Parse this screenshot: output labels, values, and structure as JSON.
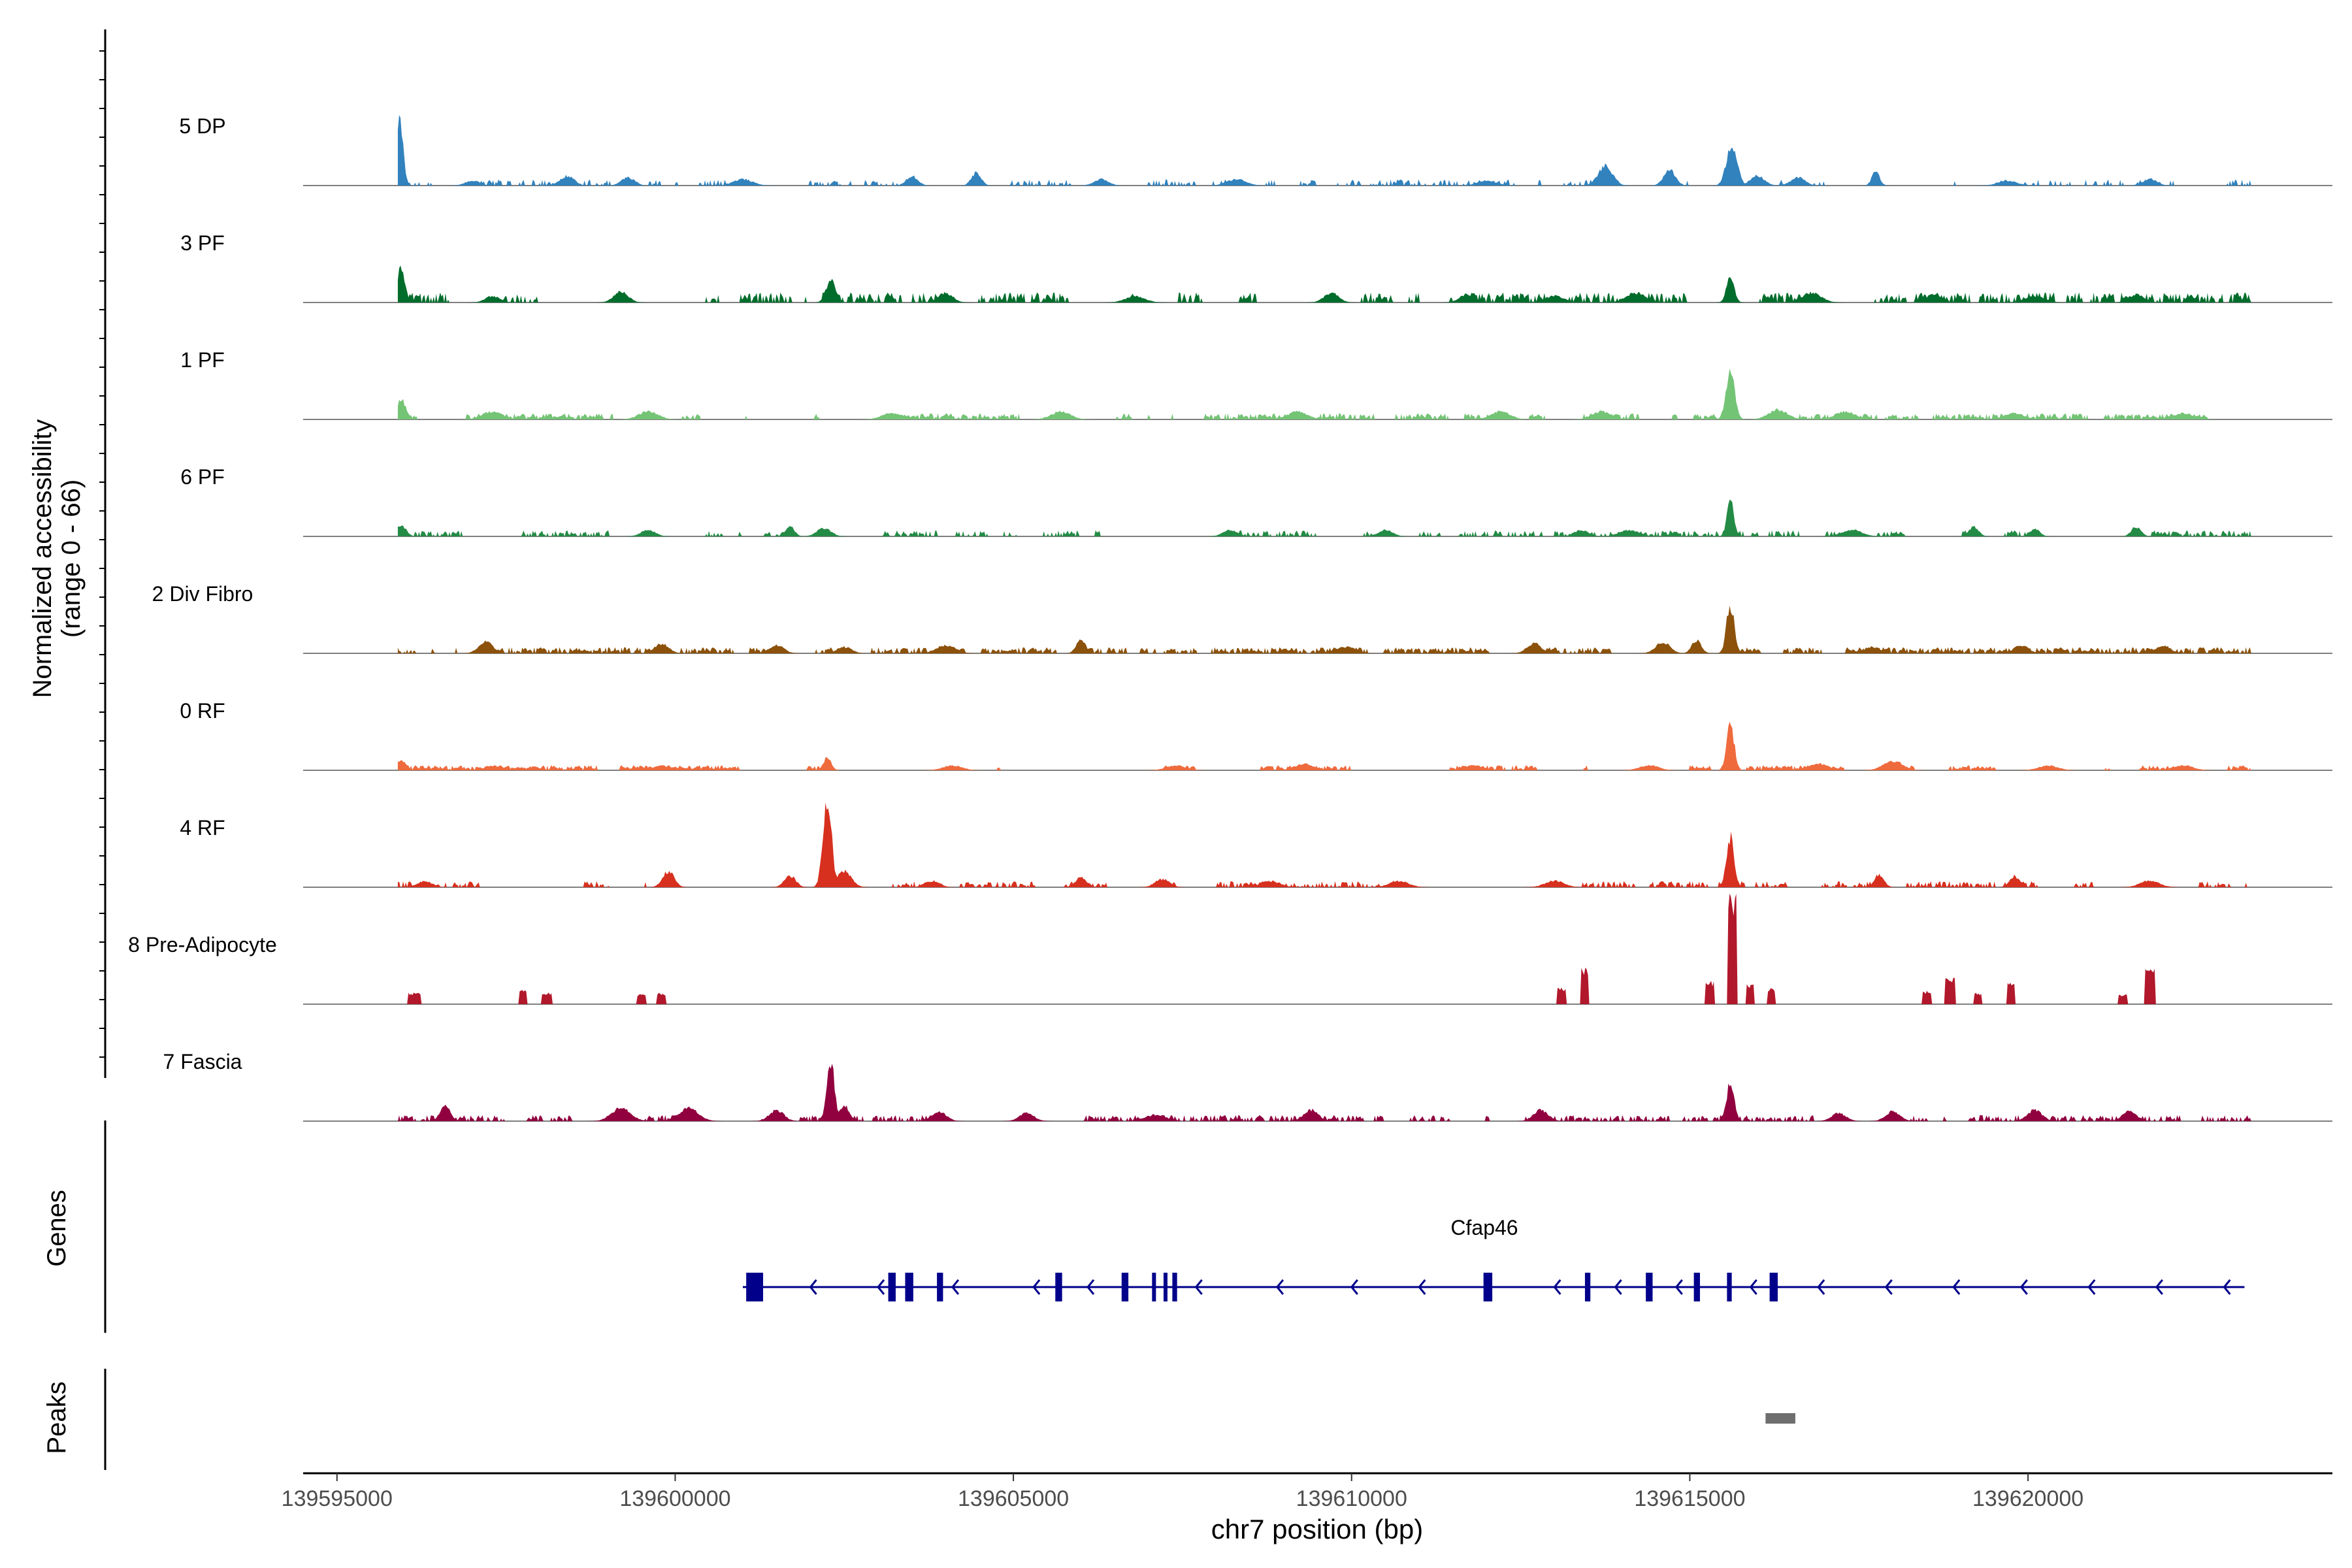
{
  "chart_data": {
    "type": "area",
    "title": "",
    "xlabel": "chr7 position (bp)",
    "ylabel_line1": "Normalized accessibility",
    "ylabel_line2": "(range 0 - 66)",
    "y_range": [
      0,
      66
    ],
    "x_range": [
      139594500,
      139624500
    ],
    "x_ticks": [
      139595000,
      139600000,
      139605000,
      139610000,
      139615000,
      139620000
    ],
    "x_tick_labels": [
      "139595000",
      "139600000",
      "139605000",
      "139610000",
      "139615000",
      "139620000"
    ],
    "genes_label": "Genes",
    "peaks_label": "Peaks",
    "tracks": [
      {
        "name": "5 DP",
        "color": "#3182bd",
        "peaks": [
          [
            139595930,
            40,
            70
          ],
          [
            139615620,
            26,
            110
          ],
          [
            139614700,
            10,
            120
          ],
          [
            139613750,
            12,
            150
          ],
          [
            139603500,
            6,
            120
          ],
          [
            139604450,
            8,
            100
          ],
          [
            139617750,
            9,
            80
          ],
          [
            139598400,
            6,
            150
          ],
          [
            139599300,
            5,
            140
          ],
          [
            139601000,
            4,
            200
          ],
          [
            139606300,
            4,
            150
          ],
          [
            139608300,
            4,
            200
          ],
          [
            139612000,
            3,
            200
          ],
          [
            139616000,
            6,
            150
          ],
          [
            139616600,
            5,
            150
          ],
          [
            139619700,
            3,
            200
          ],
          [
            139621800,
            4,
            150
          ],
          [
            139597000,
            3,
            150
          ]
        ],
        "noise": 3,
        "density": 0.4
      },
      {
        "name": "3 PF",
        "color": "#006d2c",
        "peaks": [
          [
            139595950,
            22,
            80
          ],
          [
            139602300,
            14,
            100
          ],
          [
            139615600,
            16,
            80
          ],
          [
            139599200,
            7,
            150
          ],
          [
            139604000,
            6,
            150
          ],
          [
            139609700,
            6,
            150
          ],
          [
            139611700,
            5,
            150
          ],
          [
            139614200,
            6,
            200
          ],
          [
            139616800,
            6,
            200
          ],
          [
            139618600,
            5,
            150
          ],
          [
            139621600,
            5,
            150
          ],
          [
            139597300,
            4,
            150
          ],
          [
            139606800,
            4,
            200
          ],
          [
            139613000,
            4,
            200
          ],
          [
            139620100,
            4,
            200
          ]
        ],
        "noise": 5,
        "density": 0.75
      },
      {
        "name": "1 PF",
        "color": "#74c476",
        "peaks": [
          [
            139615600,
            30,
            90
          ],
          [
            139595950,
            12,
            100
          ],
          [
            139597300,
            5,
            200
          ],
          [
            139599600,
            5,
            200
          ],
          [
            139603200,
            4,
            200
          ],
          [
            139605700,
            5,
            200
          ],
          [
            139609200,
            5,
            200
          ],
          [
            139612200,
            5,
            200
          ],
          [
            139613700,
            5,
            200
          ],
          [
            139616300,
            6,
            200
          ],
          [
            139617300,
            5,
            200
          ],
          [
            139619800,
            4,
            200
          ],
          [
            139622300,
            4,
            200
          ]
        ],
        "noise": 3,
        "density": 0.85
      },
      {
        "name": "6 PF",
        "color": "#238b45",
        "peaks": [
          [
            139615600,
            24,
            70
          ],
          [
            139595950,
            7,
            100
          ],
          [
            139601700,
            6,
            90
          ],
          [
            139602200,
            5,
            150
          ],
          [
            139614100,
            4,
            200
          ],
          [
            139619200,
            6,
            100
          ],
          [
            139620100,
            5,
            100
          ],
          [
            139621600,
            6,
            100
          ],
          [
            139599600,
            4,
            150
          ],
          [
            139608200,
            4,
            150
          ],
          [
            139610500,
            4,
            150
          ],
          [
            139613400,
            4,
            150
          ],
          [
            139617400,
            4,
            200
          ]
        ],
        "noise": 3,
        "density": 0.6
      },
      {
        "name": "2 Div Fibro",
        "color": "#8c510a",
        "peaks": [
          [
            139615600,
            30,
            80
          ],
          [
            139615100,
            8,
            100
          ],
          [
            139606000,
            8,
            100
          ],
          [
            139597200,
            7,
            150
          ],
          [
            139599800,
            6,
            150
          ],
          [
            139601500,
            5,
            150
          ],
          [
            139602500,
            4,
            150
          ],
          [
            139604000,
            5,
            200
          ],
          [
            139609900,
            4,
            200
          ],
          [
            139612700,
            6,
            150
          ],
          [
            139614600,
            7,
            150
          ],
          [
            139617700,
            4,
            150
          ],
          [
            139619900,
            5,
            150
          ],
          [
            139622000,
            5,
            150
          ]
        ],
        "noise": 3,
        "density": 0.8
      },
      {
        "name": "0 RF",
        "color": "#ef6a3d",
        "peaks": [
          [
            139615600,
            28,
            80
          ],
          [
            139602250,
            8,
            80
          ],
          [
            139618000,
            6,
            200
          ],
          [
            139595950,
            6,
            100
          ],
          [
            139597300,
            3,
            150
          ],
          [
            139599800,
            3,
            150
          ],
          [
            139604100,
            3,
            200
          ],
          [
            139607400,
            3,
            200
          ],
          [
            139609300,
            4,
            200
          ],
          [
            139611800,
            3,
            200
          ],
          [
            139614400,
            3,
            200
          ],
          [
            139616900,
            4,
            200
          ],
          [
            139620300,
            3,
            200
          ],
          [
            139622300,
            3,
            200
          ]
        ],
        "noise": 2.5,
        "density": 0.9
      },
      {
        "name": "4 RF",
        "color": "#d7301f",
        "peaks": [
          [
            139602250,
            54,
            90
          ],
          [
            139602500,
            10,
            150
          ],
          [
            139615600,
            32,
            80
          ],
          [
            139599900,
            10,
            120
          ],
          [
            139601700,
            7,
            120
          ],
          [
            139617800,
            8,
            100
          ],
          [
            139603800,
            4,
            150
          ],
          [
            139606000,
            6,
            120
          ],
          [
            139607200,
            5,
            150
          ],
          [
            139608800,
            4,
            200
          ],
          [
            139610700,
            4,
            200
          ],
          [
            139613000,
            4,
            200
          ],
          [
            139619800,
            7,
            100
          ],
          [
            139621800,
            4,
            200
          ],
          [
            139596300,
            4,
            150
          ]
        ],
        "noise": 3,
        "density": 0.65
      },
      {
        "name": "8 Pre-Adipocyte",
        "color": "#b2182b",
        "peaks": [
          [
            139615630,
            66,
            60
          ],
          [
            139615300,
            14,
            60
          ],
          [
            139615900,
            12,
            50
          ],
          [
            139616200,
            10,
            50
          ],
          [
            139613450,
            22,
            50
          ],
          [
            139613100,
            10,
            60
          ],
          [
            139621800,
            22,
            60
          ],
          [
            139621400,
            6,
            60
          ],
          [
            139619750,
            14,
            50
          ],
          [
            139618850,
            16,
            60
          ],
          [
            139618500,
            8,
            60
          ],
          [
            139619250,
            7,
            50
          ],
          [
            139597750,
            9,
            50
          ],
          [
            139598100,
            7,
            60
          ],
          [
            139599500,
            6,
            60
          ],
          [
            139599800,
            7,
            60
          ],
          [
            139596150,
            7,
            80
          ]
        ],
        "noise": 0,
        "density": 0.0,
        "blocky": true
      },
      {
        "name": "7 Fascia",
        "color": "#91003f",
        "peaks": [
          [
            139602300,
            36,
            80
          ],
          [
            139602500,
            10,
            100
          ],
          [
            139615600,
            24,
            80
          ],
          [
            139596600,
            11,
            100
          ],
          [
            139599200,
            8,
            200
          ],
          [
            139600200,
            8,
            200
          ],
          [
            139601500,
            7,
            150
          ],
          [
            139603900,
            6,
            150
          ],
          [
            139605200,
            5,
            150
          ],
          [
            139607100,
            4,
            200
          ],
          [
            139609400,
            7,
            150
          ],
          [
            139612800,
            7,
            150
          ],
          [
            139618000,
            6,
            150
          ],
          [
            139620100,
            7,
            150
          ],
          [
            139621500,
            6,
            150
          ],
          [
            139617200,
            5,
            150
          ]
        ],
        "noise": 3,
        "density": 0.65
      }
    ],
    "gene": {
      "name": "Cfap46",
      "strand": "-",
      "start": 139601000,
      "end": 139623200,
      "exons": [
        [
          139601050,
          139601300
        ],
        [
          139603150,
          139603260
        ],
        [
          139603400,
          139603520
        ],
        [
          139603870,
          139603960
        ],
        [
          139605620,
          139605720
        ],
        [
          139606600,
          139606700
        ],
        [
          139607050,
          139607100
        ],
        [
          139607220,
          139607270
        ],
        [
          139607350,
          139607420
        ],
        [
          139611950,
          139612080
        ],
        [
          139613450,
          139613530
        ],
        [
          139614350,
          139614450
        ],
        [
          139615060,
          139615150
        ],
        [
          139615550,
          139615620
        ],
        [
          139616180,
          139616300
        ]
      ],
      "arrows": [
        139602000,
        139603000,
        139604100,
        139605300,
        139606100,
        139607700,
        139608900,
        139610000,
        139611000,
        139613000,
        139613900,
        139614800,
        139615900,
        139616900,
        139617900,
        139618900,
        139619900,
        139620900,
        139621900,
        139622900
      ]
    },
    "peak_regions": [
      [
        139616120,
        139616560
      ]
    ]
  }
}
